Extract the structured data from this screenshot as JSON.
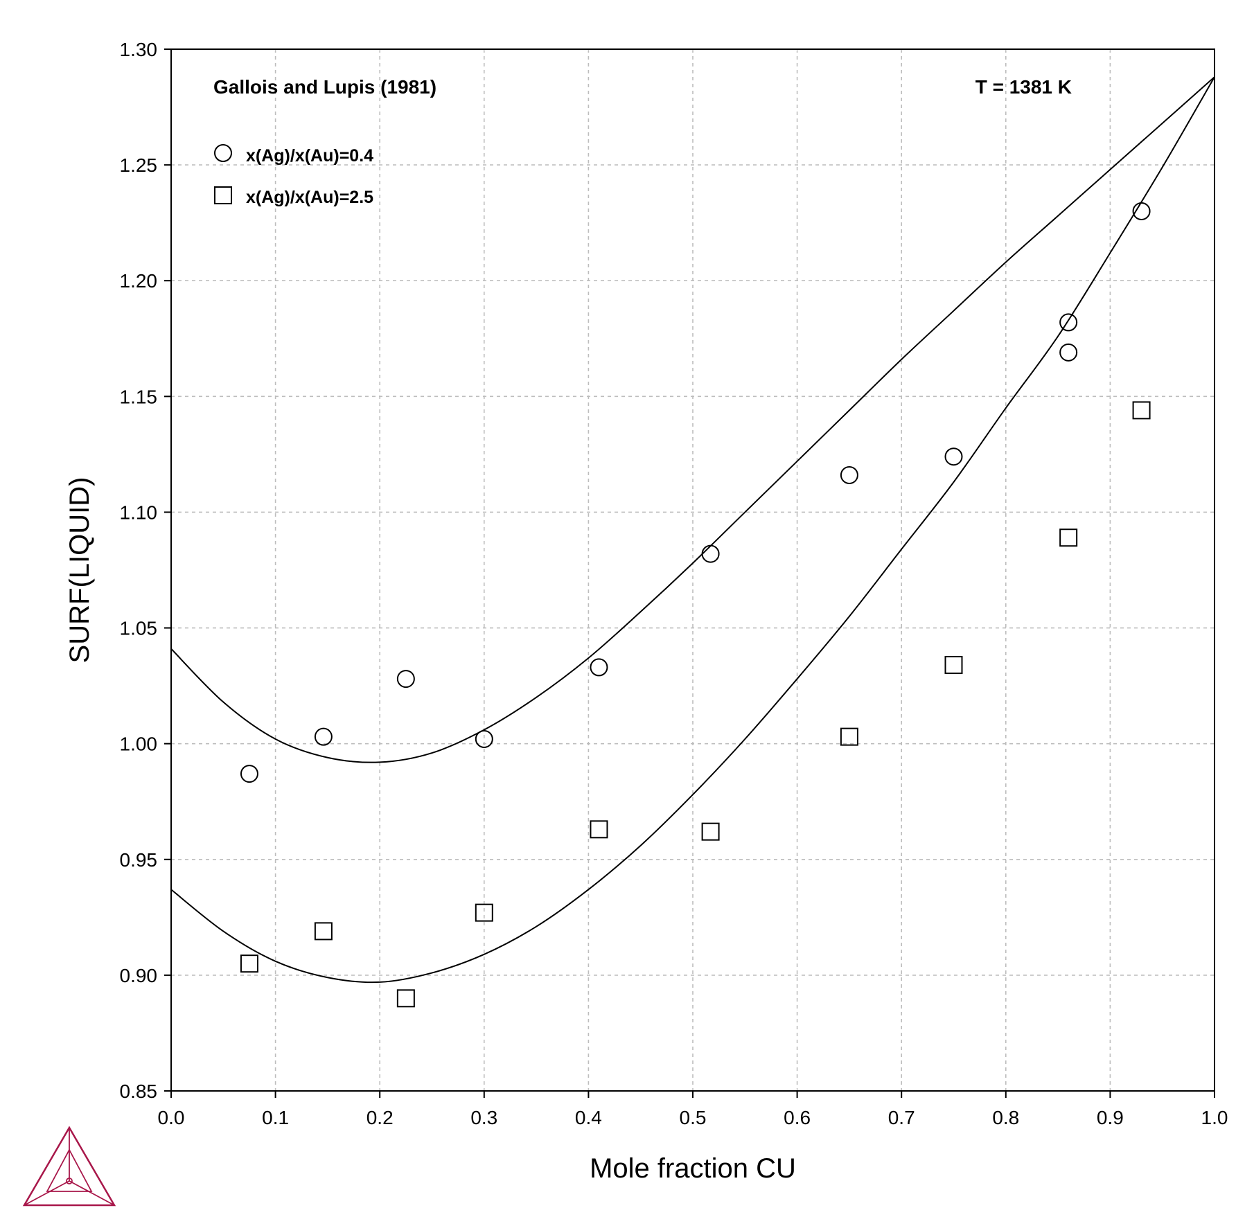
{
  "chart_data": {
    "type": "scatter",
    "xlabel": "Mole fraction CU",
    "ylabel": "SURF(LIQUID)",
    "xlim": [
      0.0,
      1.0
    ],
    "ylim": [
      0.85,
      1.3
    ],
    "x_ticks": [
      "0.0",
      "0.1",
      "0.2",
      "0.3",
      "0.4",
      "0.5",
      "0.6",
      "0.7",
      "0.8",
      "0.9",
      "1.0"
    ],
    "y_ticks": [
      "0.85",
      "0.90",
      "0.95",
      "1.00",
      "1.05",
      "1.10",
      "1.15",
      "1.20",
      "1.25",
      "1.30"
    ],
    "grid": true,
    "legend_position": "top-left",
    "annotations": {
      "source": "Gallois and Lupis (1981)",
      "temperature": "T = 1381 K"
    },
    "series": [
      {
        "name": "x(Ag)/x(Au)=0.4",
        "marker": "circle",
        "points": [
          [
            0.075,
            0.987
          ],
          [
            0.146,
            1.003
          ],
          [
            0.225,
            1.028
          ],
          [
            0.3,
            1.002
          ],
          [
            0.41,
            1.033
          ],
          [
            0.517,
            1.082
          ],
          [
            0.65,
            1.116
          ],
          [
            0.75,
            1.124
          ],
          [
            0.86,
            1.182
          ],
          [
            0.86,
            1.169
          ],
          [
            0.93,
            1.23
          ]
        ]
      },
      {
        "name": "x(Ag)/x(Au)=2.5",
        "marker": "square",
        "points": [
          [
            0.075,
            0.905
          ],
          [
            0.146,
            0.919
          ],
          [
            0.225,
            0.89
          ],
          [
            0.3,
            0.927
          ],
          [
            0.41,
            0.963
          ],
          [
            0.517,
            0.962
          ],
          [
            0.65,
            1.003
          ],
          [
            0.75,
            1.034
          ],
          [
            0.86,
            1.089
          ],
          [
            0.93,
            1.144
          ]
        ]
      }
    ],
    "lines": [
      {
        "points": [
          [
            0.0,
            1.041
          ],
          [
            0.05,
            1.018
          ],
          [
            0.1,
            1.002
          ],
          [
            0.15,
            0.994
          ],
          [
            0.2,
            0.992
          ],
          [
            0.25,
            0.996
          ],
          [
            0.3,
            1.006
          ],
          [
            0.35,
            1.02
          ],
          [
            0.4,
            1.037
          ],
          [
            0.45,
            1.057
          ],
          [
            0.5,
            1.078
          ],
          [
            0.55,
            1.1
          ],
          [
            0.6,
            1.122
          ],
          [
            0.65,
            1.144
          ],
          [
            0.7,
            1.166
          ],
          [
            0.75,
            1.187
          ],
          [
            0.8,
            1.208
          ],
          [
            0.85,
            1.228
          ],
          [
            0.9,
            1.248
          ],
          [
            0.95,
            1.268
          ],
          [
            1.0,
            1.288
          ]
        ]
      },
      {
        "points": [
          [
            0.0,
            0.937
          ],
          [
            0.05,
            0.919
          ],
          [
            0.1,
            0.906
          ],
          [
            0.15,
            0.899
          ],
          [
            0.2,
            0.897
          ],
          [
            0.25,
            0.901
          ],
          [
            0.3,
            0.909
          ],
          [
            0.35,
            0.921
          ],
          [
            0.4,
            0.937
          ],
          [
            0.45,
            0.956
          ],
          [
            0.5,
            0.978
          ],
          [
            0.55,
            1.002
          ],
          [
            0.6,
            1.028
          ],
          [
            0.65,
            1.055
          ],
          [
            0.7,
            1.084
          ],
          [
            0.75,
            1.113
          ],
          [
            0.8,
            1.145
          ],
          [
            0.85,
            1.176
          ],
          [
            0.9,
            1.212
          ],
          [
            0.95,
            1.249
          ],
          [
            1.0,
            1.288
          ]
        ]
      }
    ]
  },
  "colors": {
    "axis": "#000000",
    "grid": "#bdbdbd",
    "logo": "#a8174a"
  },
  "logo_icon": "thermo-calc-triangle-logo"
}
